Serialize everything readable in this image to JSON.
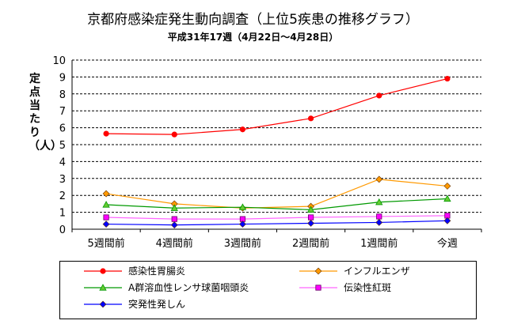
{
  "chart_data": {
    "type": "line",
    "title": "京都府感染症発生動向調査（上位5疾患の推移グラフ）",
    "subtitle": "平成31年17週（4月22日～4月28日）",
    "ylabel": "定点当たり（人）",
    "ylim": [
      0,
      10
    ],
    "yticks": [
      "0",
      "1",
      "2",
      "3",
      "4",
      "5",
      "6",
      "7",
      "8",
      "9",
      "10"
    ],
    "grid": true,
    "legend_position": "bottom",
    "categories": [
      "5週間前",
      "4週間前",
      "3週間前",
      "2週間前",
      "1週間前",
      "今週"
    ],
    "series": [
      {
        "name": "感染性胃腸炎",
        "color": "#ff0000",
        "marker": "circle",
        "marker_fill": "#ff0000",
        "values": [
          5.65,
          5.6,
          5.9,
          6.55,
          7.9,
          8.9
        ]
      },
      {
        "name": "インフルエンザ",
        "color": "#ff9900",
        "marker": "diamond",
        "marker_fill": "#ff9900",
        "values": [
          2.1,
          1.5,
          1.25,
          1.35,
          2.95,
          2.55
        ]
      },
      {
        "name": "A群溶血性レンサ球菌咽頭炎",
        "color": "#009900",
        "marker": "triangle",
        "marker_fill": "#66cc33",
        "values": [
          1.45,
          1.25,
          1.3,
          1.15,
          1.6,
          1.8
        ]
      },
      {
        "name": "伝染性紅斑",
        "color": "#ff66ff",
        "marker": "square",
        "marker_fill": "#ff00ff",
        "values": [
          0.7,
          0.6,
          0.6,
          0.7,
          0.75,
          0.8
        ]
      },
      {
        "name": "突発性発しん",
        "color": "#0000ff",
        "marker": "diamond",
        "marker_fill": "#0000ff",
        "values": [
          0.3,
          0.25,
          0.3,
          0.35,
          0.4,
          0.5
        ]
      }
    ]
  }
}
